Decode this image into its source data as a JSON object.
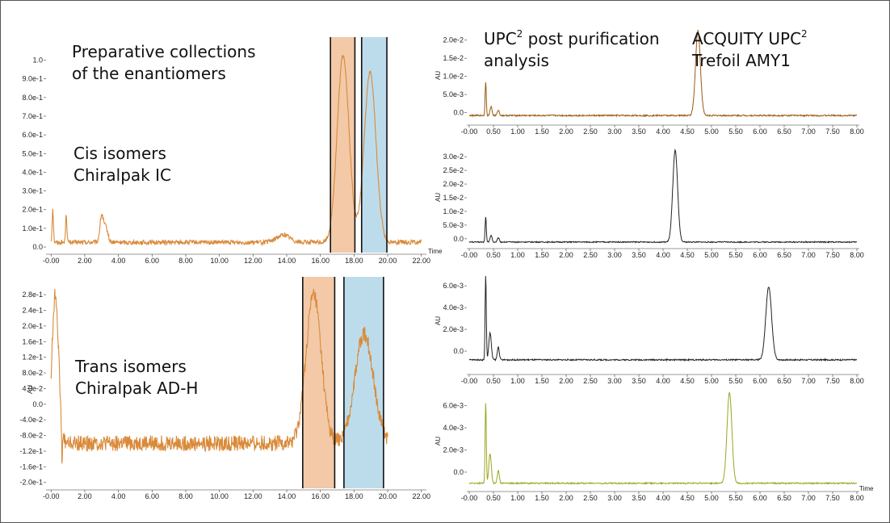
{
  "annotations": {
    "preparative_line1": "Preparative collections",
    "preparative_line2": "of the enantiomers",
    "cis_line1": "Cis isomers",
    "cis_line2": "Chiralpak IC",
    "trans_line1": "Trans isomers",
    "trans_line2": "Chiralpak AD-H",
    "upc2_a": "UPC",
    "upc2_sup": "2",
    "upc2_b": " post purification",
    "upc2_line2": "analysis",
    "acquity_a": "ACQUITY UPC",
    "acquity_sup": "2",
    "acquity_line2": "Trefoil AMY1"
  },
  "chart_data": [
    {
      "type": "line",
      "color": "#d98a3a",
      "xlabel": "Time",
      "ylabel": "",
      "xlim": [
        -0.3,
        22.3
      ],
      "ylim": [
        -0.03,
        1.08
      ],
      "xticks": [
        -0.0,
        2.0,
        4.0,
        6.0,
        8.0,
        10.0,
        12.0,
        14.0,
        16.0,
        18.0,
        20.0,
        22.0
      ],
      "xtick_labels": [
        "-0.00",
        "2.00",
        "4.00",
        "6.00",
        "8.00",
        "10.00",
        "12.00",
        "14.00",
        "16.00",
        "18.00",
        "20.00",
        "22.00"
      ],
      "yticks": [
        0.0,
        0.1,
        0.2,
        0.3,
        0.4,
        0.5,
        0.6,
        0.7,
        0.8,
        0.9,
        1.0
      ],
      "ytick_labels": [
        "0.0",
        "1.0e-1",
        "2.0e-1",
        "3.0e-1",
        "4.0e-1",
        "5.0e-1",
        "6.0e-1",
        "7.0e-1",
        "8.0e-1",
        "9.0e-1",
        "1.0"
      ],
      "x_start": 0.0,
      "x_end": 22.0,
      "baseline": 0.025,
      "noise": 0.012,
      "peaks": [
        {
          "x": 0.1,
          "height": 0.18,
          "width": 0.04
        },
        {
          "x": 0.9,
          "height": 0.15,
          "width": 0.04
        },
        {
          "x": 3.0,
          "height": 0.14,
          "width": 0.1
        },
        {
          "x": 3.25,
          "height": 0.08,
          "width": 0.12
        },
        {
          "x": 13.8,
          "height": 0.04,
          "width": 0.4
        },
        {
          "x": 17.35,
          "height": 1.0,
          "width": 0.35
        },
        {
          "x": 18.95,
          "height": 0.91,
          "width": 0.35
        }
      ],
      "bands": [
        {
          "from": 16.6,
          "to": 18.05,
          "color": "#f3c9a8"
        },
        {
          "from": 18.45,
          "to": 19.95,
          "color": "#bddceb"
        }
      ]
    },
    {
      "type": "line",
      "color": "#d98a3a",
      "xlabel": "",
      "ylabel": "AU",
      "xlim": [
        -0.3,
        22.3
      ],
      "ylim": [
        -0.215,
        0.305
      ],
      "xticks": [
        -0.0,
        2.0,
        4.0,
        6.0,
        8.0,
        10.0,
        12.0,
        14.0,
        16.0,
        18.0,
        20.0,
        22.0
      ],
      "xtick_labels": [
        "-0.00",
        "2.00",
        "4.00",
        "6.00",
        "8.00",
        "10.00",
        "12.00",
        "14.00",
        "16.00",
        "18.00",
        "20.00",
        "22.00"
      ],
      "yticks": [
        -0.2,
        -0.16,
        -0.12,
        -0.08,
        -0.04,
        0.0,
        0.04,
        0.08,
        0.12,
        0.16,
        0.2,
        0.24,
        0.28
      ],
      "ytick_labels": [
        "-2.0e-1",
        "-1.6e-1",
        "-1.2e-1",
        "-8.0e-2",
        "-4.0e-2",
        "0.0",
        "4.0e-2",
        "8.0e-2",
        "1.2e-1",
        "1.6e-1",
        "2.0e-1",
        "2.4e-1",
        "2.8e-1"
      ],
      "x_start": 0.0,
      "x_end": 20.0,
      "baseline": -0.1,
      "noise": 0.02,
      "peaks": [
        {
          "x": 0.25,
          "height": 0.38,
          "width": 0.2
        },
        {
          "x": 0.65,
          "height": -0.1,
          "width": 0.03
        },
        {
          "x": 15.6,
          "height": 0.38,
          "width": 0.45
        },
        {
          "x": 18.6,
          "height": 0.28,
          "width": 0.55
        }
      ],
      "bands": [
        {
          "from": 14.95,
          "to": 16.85,
          "color": "#f3c9a8"
        },
        {
          "from": 17.4,
          "to": 19.75,
          "color": "#bddceb"
        }
      ]
    },
    {
      "type": "line",
      "color": "#9a5a12",
      "xlabel": "",
      "ylabel": "AU",
      "xlim": [
        -0.05,
        8.05
      ],
      "ylim": [
        -0.003,
        0.0235
      ],
      "xticks": [
        -0.0,
        0.5,
        1.0,
        1.5,
        2.0,
        2.5,
        3.0,
        3.5,
        4.0,
        4.5,
        5.0,
        5.5,
        6.0,
        6.5,
        7.0,
        7.5,
        8.0
      ],
      "xtick_labels": [
        "-0.00",
        "0.50",
        "1.00",
        "1.50",
        "2.00",
        "2.50",
        "3.00",
        "3.50",
        "4.00",
        "4.50",
        "5.00",
        "5.50",
        "6.00",
        "6.50",
        "7.00",
        "7.50",
        "8.00"
      ],
      "yticks": [
        0.0,
        0.005,
        0.01,
        0.015,
        0.02
      ],
      "ytick_labels": [
        "0.0",
        "5.0e-3",
        "1.0e-2",
        "1.5e-2",
        "2.0e-2"
      ],
      "x_start": 0.0,
      "x_end": 8.0,
      "baseline": -0.0008,
      "noise": 0.0002,
      "peaks": [
        {
          "x": 0.34,
          "height": 0.0095,
          "width": 0.012
        },
        {
          "x": 0.45,
          "height": 0.0025,
          "width": 0.02
        },
        {
          "x": 0.6,
          "height": 0.0015,
          "width": 0.02
        },
        {
          "x": 4.72,
          "height": 0.0235,
          "width": 0.05
        }
      ]
    },
    {
      "type": "line",
      "color": "#222222",
      "xlabel": "",
      "ylabel": "AU",
      "xlim": [
        -0.05,
        8.05
      ],
      "ylim": [
        -0.003,
        0.033
      ],
      "xticks": [
        -0.0,
        0.5,
        1.0,
        1.5,
        2.0,
        2.5,
        3.0,
        3.5,
        4.0,
        4.5,
        5.0,
        5.5,
        6.0,
        6.5,
        7.0,
        7.5,
        8.0
      ],
      "xtick_labels": [
        "-0.00",
        "0.50",
        "1.00",
        "1.50",
        "2.00",
        "2.50",
        "3.00",
        "3.50",
        "4.00",
        "4.50",
        "5.00",
        "5.50",
        "6.00",
        "6.50",
        "7.00",
        "7.50",
        "8.00"
      ],
      "yticks": [
        0.0,
        0.005,
        0.01,
        0.015,
        0.02,
        0.025,
        0.03
      ],
      "ytick_labels": [
        "0.0",
        "5.0e-3",
        "1.0e-2",
        "1.5e-2",
        "2.0e-2",
        "2.5e-2",
        "3.0e-2"
      ],
      "x_start": 0.0,
      "x_end": 8.0,
      "baseline": -0.0012,
      "noise": 0.0002,
      "peaks": [
        {
          "x": 0.34,
          "height": 0.0095,
          "width": 0.012
        },
        {
          "x": 0.45,
          "height": 0.0025,
          "width": 0.02
        },
        {
          "x": 0.6,
          "height": 0.0015,
          "width": 0.02
        },
        {
          "x": 4.25,
          "height": 0.0335,
          "width": 0.05
        }
      ]
    },
    {
      "type": "line",
      "color": "#222222",
      "xlabel": "",
      "ylabel": "AU",
      "xlim": [
        -0.05,
        8.05
      ],
      "ylim": [
        -0.002,
        0.0072
      ],
      "xticks": [
        -0.0,
        0.5,
        1.0,
        1.5,
        2.0,
        2.5,
        3.0,
        3.5,
        4.0,
        4.5,
        5.0,
        5.5,
        6.0,
        6.5,
        7.0,
        7.5,
        8.0
      ],
      "xtick_labels": [
        "-0.00",
        "0.50",
        "1.00",
        "1.50",
        "2.00",
        "2.50",
        "3.00",
        "3.50",
        "4.00",
        "4.50",
        "5.00",
        "5.50",
        "6.00",
        "6.50",
        "7.00",
        "7.50",
        "8.00"
      ],
      "yticks": [
        0.0,
        0.002,
        0.004,
        0.006
      ],
      "ytick_labels": [
        "0.0",
        "2.0e-3",
        "4.0e-3",
        "6.0e-3"
      ],
      "x_start": 0.0,
      "x_end": 8.0,
      "baseline": -0.0008,
      "noise": 6e-05,
      "peaks": [
        {
          "x": 0.34,
          "height": 0.0079,
          "width": 0.012
        },
        {
          "x": 0.43,
          "height": 0.0025,
          "width": 0.025
        },
        {
          "x": 0.6,
          "height": 0.0012,
          "width": 0.02
        },
        {
          "x": 6.18,
          "height": 0.0067,
          "width": 0.06
        }
      ]
    },
    {
      "type": "line",
      "color": "#9aa622",
      "xlabel": "Time",
      "ylabel": "AU",
      "xlim": [
        -0.05,
        8.05
      ],
      "ylim": [
        -0.0016,
        0.0072
      ],
      "xticks": [
        -0.0,
        0.5,
        1.0,
        1.5,
        2.0,
        2.5,
        3.0,
        3.5,
        4.0,
        4.5,
        5.0,
        5.5,
        6.0,
        6.5,
        7.0,
        7.5,
        8.0
      ],
      "xtick_labels": [
        "-0.00",
        "0.50",
        "1.00",
        "1.50",
        "2.00",
        "2.50",
        "3.00",
        "3.50",
        "4.00",
        "4.50",
        "5.00",
        "5.50",
        "6.00",
        "6.50",
        "7.00",
        "7.50",
        "8.00"
      ],
      "yticks": [
        0.0,
        0.002,
        0.004,
        0.006
      ],
      "ytick_labels": [
        "0.0",
        "2.0e-3",
        "4.0e-3",
        "6.0e-3"
      ],
      "x_start": 0.0,
      "x_end": 8.0,
      "baseline": -0.001,
      "noise": 6e-05,
      "peaks": [
        {
          "x": 0.34,
          "height": 0.0074,
          "width": 0.012
        },
        {
          "x": 0.43,
          "height": 0.0027,
          "width": 0.025
        },
        {
          "x": 0.6,
          "height": 0.0012,
          "width": 0.02
        },
        {
          "x": 5.37,
          "height": 0.0082,
          "width": 0.05
        }
      ]
    }
  ]
}
